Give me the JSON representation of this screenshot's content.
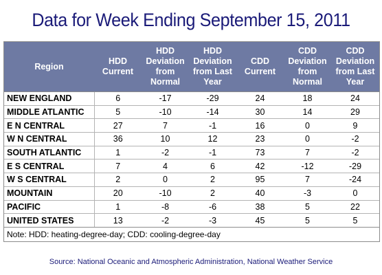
{
  "title": "Data for Week Ending September 15, 2011",
  "chart_data": {
    "type": "table",
    "columns": [
      "Region",
      "HDD Current",
      "HDD Deviation from Normal",
      "HDD Deviation from Last Year",
      "CDD Current",
      "CDD Deviation from Normal",
      "CDD Deviation from Last Year"
    ],
    "rows": [
      [
        "NEW ENGLAND",
        "6",
        "-17",
        "-29",
        "24",
        "18",
        "24"
      ],
      [
        "MIDDLE ATLANTIC",
        "5",
        "-10",
        "-14",
        "30",
        "14",
        "29"
      ],
      [
        "E N CENTRAL",
        "27",
        "7",
        "-1",
        "16",
        "0",
        "9"
      ],
      [
        "W N CENTRAL",
        "36",
        "10",
        "12",
        "23",
        "0",
        "-2"
      ],
      [
        "SOUTH ATLANTIC",
        "1",
        "-2",
        "-1",
        "73",
        "7",
        "-2"
      ],
      [
        "E S CENTRAL",
        "7",
        "4",
        "6",
        "42",
        "-12",
        "-29"
      ],
      [
        "W S CENTRAL",
        "2",
        "0",
        "2",
        "95",
        "7",
        "-24"
      ],
      [
        "MOUNTAIN",
        "20",
        "-10",
        "2",
        "40",
        "-3",
        "0"
      ],
      [
        "PACIFIC",
        "1",
        "-8",
        "-6",
        "38",
        "5",
        "22"
      ],
      [
        "UNITED STATES",
        "13",
        "-2",
        "-3",
        "45",
        "5",
        "5"
      ]
    ]
  },
  "note": "Note: HDD: heating-degree-day; CDD: cooling-degree-day",
  "source": "Source:  National Oceanic and Atmospheric Administration, National Weather Service"
}
